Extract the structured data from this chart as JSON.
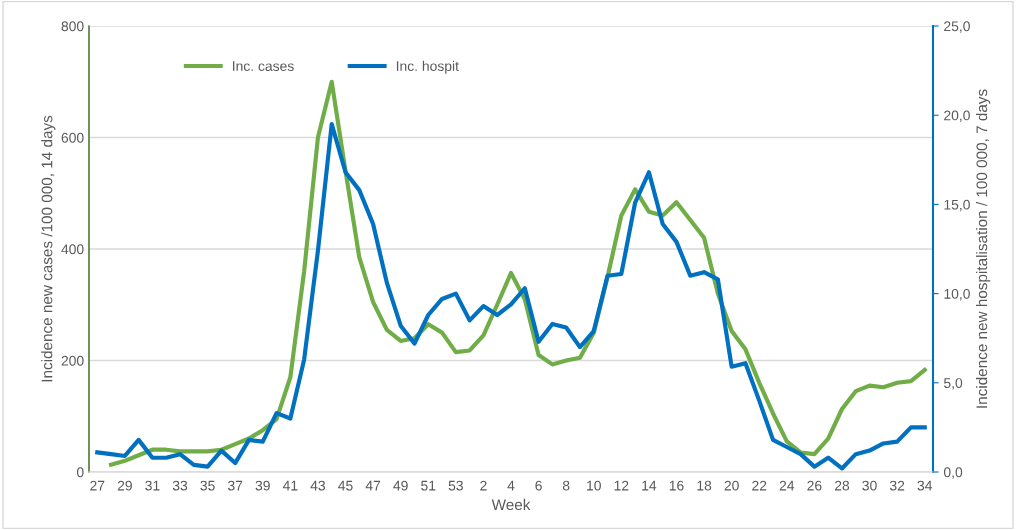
{
  "chart_data": {
    "type": "line",
    "xlabel": "Week",
    "ylabel": "Incidence new cases /100 000, 14 days",
    "y2label": "Incidence new hospitalisation / 100 000, 7 days",
    "categories": [
      "27",
      null,
      "29",
      null,
      "31",
      null,
      "33",
      null,
      "35",
      null,
      "37",
      null,
      "39",
      null,
      "41",
      null,
      "43",
      null,
      "45",
      null,
      "47",
      null,
      "49",
      null,
      "51",
      null,
      "53",
      null,
      "2",
      null,
      "4",
      null,
      "6",
      null,
      "8",
      null,
      "10",
      null,
      "12",
      null,
      "14",
      null,
      "16",
      null,
      "18",
      null,
      "20",
      null,
      "22",
      null,
      "24",
      null,
      "26",
      null,
      "28",
      null,
      "30",
      null,
      "32",
      null,
      "34"
    ],
    "series": [
      {
        "name": "Inc. cases",
        "color": "#70ad47",
        "values": [
          null,
          13,
          20,
          30,
          40,
          40,
          37,
          37,
          37,
          40,
          50,
          60,
          75,
          95,
          170,
          360,
          600,
          700,
          540,
          385,
          305,
          255,
          235,
          240,
          265,
          250,
          215,
          218,
          245,
          300,
          357,
          310,
          210,
          193,
          200,
          205,
          250,
          350,
          460,
          507,
          467,
          460,
          484,
          452,
          420,
          320,
          253,
          220,
          160,
          105,
          55,
          35,
          32,
          60,
          113,
          145,
          155,
          152,
          160,
          163,
          183
        ]
      },
      {
        "name": "Inc. hospit",
        "color": "#0070c0",
        "axis": "y2",
        "values": [
          1.1,
          1.0,
          0.9,
          1.8,
          0.8,
          0.8,
          1.0,
          0.4,
          0.3,
          1.2,
          0.5,
          1.8,
          1.7,
          3.3,
          3.0,
          6.3,
          12.4,
          19.5,
          16.8,
          15.8,
          13.9,
          10.6,
          8.2,
          7.2,
          8.8,
          9.7,
          10.0,
          8.5,
          9.3,
          8.8,
          9.4,
          10.3,
          7.3,
          8.3,
          8.1,
          7.0,
          7.9,
          11.0,
          11.1,
          15.1,
          16.8,
          13.9,
          12.9,
          11.0,
          11.2,
          10.8,
          5.9,
          6.1,
          4.0,
          1.8,
          1.4,
          1.0,
          0.3,
          0.8,
          0.2,
          1.0,
          1.2,
          1.6,
          1.7,
          2.5,
          2.5
        ]
      }
    ],
    "ylim": [
      0,
      800
    ],
    "yticks": [
      0,
      200,
      400,
      600,
      800
    ],
    "y2lim": [
      0,
      25
    ],
    "y2ticks": [
      {
        "value": 0,
        "label": "0,0"
      },
      {
        "value": 5,
        "label": "5,0"
      },
      {
        "value": 10,
        "label": "10,0"
      },
      {
        "value": 15,
        "label": "15,0"
      },
      {
        "value": 20,
        "label": "20,0"
      },
      {
        "value": 25,
        "label": "25,0"
      }
    ],
    "grid": "y",
    "legend": "top left",
    "line_style": "solid",
    "marker": "none"
  }
}
